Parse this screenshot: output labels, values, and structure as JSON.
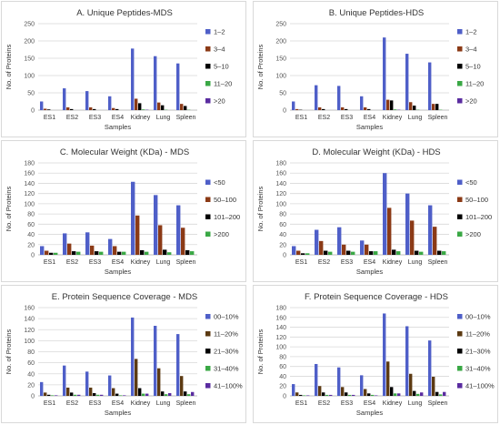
{
  "chart_data": [
    {
      "type": "bar",
      "title": "A. Unique Peptides-MDS",
      "xlabel": "Samples",
      "ylabel": "No. of Proteins",
      "ylim": [
        0,
        250
      ],
      "yticks": [
        0,
        50,
        100,
        150,
        200,
        250
      ],
      "grid": true,
      "legend_position": "right",
      "categories": [
        "ES1",
        "ES2",
        "ES3",
        "ES4",
        "Kidney",
        "Lung",
        "Spleen"
      ],
      "series": [
        {
          "name": "1–2",
          "color": "#4f5fc8",
          "values": [
            25,
            63,
            55,
            40,
            178,
            156,
            135
          ]
        },
        {
          "name": "3–4",
          "color": "#8b3a16",
          "values": [
            4,
            8,
            8,
            6,
            33,
            22,
            18
          ]
        },
        {
          "name": "5–10",
          "color": "#000000",
          "values": [
            2,
            3,
            3,
            3,
            20,
            14,
            12
          ]
        },
        {
          "name": "11–20",
          "color": "#3aa845",
          "values": [
            0,
            0,
            0,
            0,
            2,
            1,
            1
          ]
        },
        {
          "name": ">20",
          "color": "#5a2ca0",
          "values": [
            0,
            0,
            0,
            0,
            1,
            0,
            0
          ]
        }
      ]
    },
    {
      "type": "bar",
      "title": "B. Unique Peptides-HDS",
      "xlabel": "Samples",
      "ylabel": "No. of Proteins",
      "ylim": [
        0,
        250
      ],
      "yticks": [
        0,
        50,
        100,
        150,
        200,
        250
      ],
      "grid": true,
      "legend_position": "right",
      "categories": [
        "ES1",
        "ES2",
        "ES3",
        "ES4",
        "Kidney",
        "Lung",
        "Spleen"
      ],
      "series": [
        {
          "name": "1–2",
          "color": "#4f5fc8",
          "values": [
            25,
            72,
            70,
            40,
            210,
            163,
            138
          ]
        },
        {
          "name": "3–4",
          "color": "#8b3a16",
          "values": [
            3,
            8,
            8,
            8,
            30,
            23,
            18
          ]
        },
        {
          "name": "5–10",
          "color": "#000000",
          "values": [
            1,
            3,
            3,
            3,
            28,
            13,
            18
          ]
        },
        {
          "name": "11–20",
          "color": "#3aa845",
          "values": [
            0,
            0,
            0,
            0,
            2,
            1,
            1
          ]
        },
        {
          "name": ">20",
          "color": "#5a2ca0",
          "values": [
            0,
            0,
            0,
            0,
            1,
            0,
            0
          ]
        }
      ]
    },
    {
      "type": "bar",
      "title": "C. Molecular Weight (KDa) - MDS",
      "xlabel": "Samples",
      "ylabel": "No. of Proteins",
      "ylim": [
        0,
        180
      ],
      "yticks": [
        0,
        20,
        40,
        60,
        80,
        100,
        120,
        140,
        160,
        180
      ],
      "grid": true,
      "legend_position": "right",
      "categories": [
        "ES1",
        "ES2",
        "ES3",
        "ES4",
        "Kidney",
        "Lung",
        "Spleen"
      ],
      "series": [
        {
          "name": "<50",
          "color": "#4f5fc8",
          "values": [
            17,
            42,
            44,
            31,
            143,
            117,
            97
          ]
        },
        {
          "name": "50–100",
          "color": "#8b3a16",
          "values": [
            8,
            22,
            18,
            17,
            77,
            58,
            53
          ]
        },
        {
          "name": "101–200",
          "color": "#000000",
          "values": [
            4,
            7,
            7,
            6,
            9,
            10,
            9
          ]
        },
        {
          "name": ">200",
          "color": "#3aa845",
          "values": [
            4,
            6,
            6,
            6,
            6,
            5,
            7
          ]
        }
      ]
    },
    {
      "type": "bar",
      "title": "D. Molecular Weight (KDa) - HDS",
      "xlabel": "Samples",
      "ylabel": "No. of Proteins",
      "ylim": [
        0,
        180
      ],
      "yticks": [
        0,
        20,
        40,
        60,
        80,
        100,
        120,
        140,
        160,
        180
      ],
      "grid": true,
      "legend_position": "right",
      "categories": [
        "ES1",
        "ES2",
        "ES3",
        "ES4",
        "Kidney",
        "Lung",
        "Spleen"
      ],
      "series": [
        {
          "name": "<50",
          "color": "#4f5fc8",
          "values": [
            17,
            49,
            54,
            28,
            160,
            120,
            97
          ]
        },
        {
          "name": "50–100",
          "color": "#8b3a16",
          "values": [
            8,
            27,
            20,
            20,
            92,
            67,
            55
          ]
        },
        {
          "name": "101–200",
          "color": "#000000",
          "values": [
            3,
            8,
            8,
            7,
            10,
            8,
            8
          ]
        },
        {
          "name": ">200",
          "color": "#3aa845",
          "values": [
            3,
            6,
            6,
            7,
            7,
            6,
            7
          ]
        }
      ]
    },
    {
      "type": "bar",
      "title": "E. Protein Sequence Coverage - MDS",
      "xlabel": "Samples",
      "ylabel": "No. of Proteins",
      "ylim": [
        0,
        160
      ],
      "yticks": [
        0,
        20,
        40,
        60,
        80,
        100,
        120,
        140,
        160
      ],
      "grid": true,
      "legend_position": "right",
      "categories": [
        "ES1",
        "ES2",
        "ES3",
        "ES4",
        "Kidney",
        "Lung",
        "Spleen"
      ],
      "series": [
        {
          "name": "00–10%",
          "color": "#4f5fc8",
          "values": [
            25,
            55,
            44,
            37,
            142,
            127,
            112
          ]
        },
        {
          "name": "11–20%",
          "color": "#5c3a12",
          "values": [
            6,
            15,
            15,
            14,
            67,
            50,
            36
          ]
        },
        {
          "name": "21–30%",
          "color": "#000000",
          "values": [
            2,
            6,
            5,
            4,
            14,
            8,
            8
          ]
        },
        {
          "name": "31–40%",
          "color": "#3aa845",
          "values": [
            1,
            2,
            2,
            1,
            4,
            3,
            3
          ]
        },
        {
          "name": "41–100%",
          "color": "#5a2ca0",
          "values": [
            1,
            2,
            2,
            1,
            4,
            5,
            7
          ]
        }
      ]
    },
    {
      "type": "bar",
      "title": "F. Protein Sequence Coverage - HDS",
      "xlabel": "Samples",
      "ylabel": "No. of Proteins",
      "ylim": [
        0,
        180
      ],
      "yticks": [
        0,
        20,
        40,
        60,
        80,
        100,
        120,
        140,
        160,
        180
      ],
      "grid": true,
      "legend_position": "right",
      "categories": [
        "ES1",
        "ES2",
        "ES3",
        "ES4",
        "Kidney",
        "Lung",
        "Spleen"
      ],
      "series": [
        {
          "name": "00–10%",
          "color": "#4f5fc8",
          "values": [
            24,
            65,
            58,
            42,
            168,
            142,
            113
          ]
        },
        {
          "name": "11–20%",
          "color": "#5c3a12",
          "values": [
            7,
            20,
            18,
            14,
            70,
            45,
            39
          ]
        },
        {
          "name": "21–30%",
          "color": "#000000",
          "values": [
            2,
            7,
            7,
            5,
            18,
            10,
            8
          ]
        },
        {
          "name": "31–40%",
          "color": "#3aa845",
          "values": [
            1,
            2,
            2,
            2,
            5,
            4,
            3
          ]
        },
        {
          "name": "41–100%",
          "color": "#5a2ca0",
          "values": [
            1,
            2,
            2,
            1,
            5,
            7,
            8
          ]
        }
      ]
    }
  ]
}
